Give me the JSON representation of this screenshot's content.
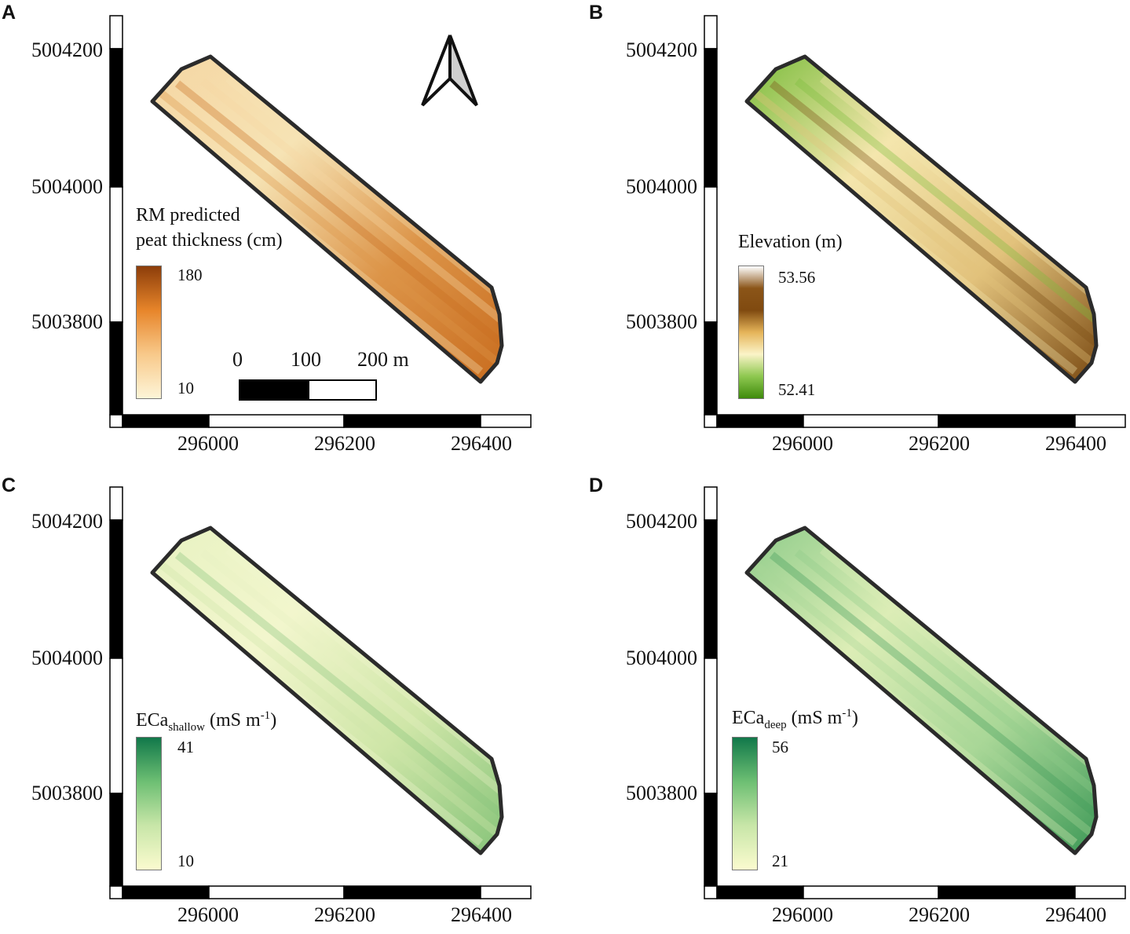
{
  "figure": {
    "y_ticks": [
      "5004200",
      "5004000",
      "5003800"
    ],
    "x_ticks": [
      "296000",
      "296200",
      "296400"
    ],
    "frame_stripes_y": [
      "#ffffff",
      "#000000",
      "#ffffff",
      "#000000"
    ],
    "frame_stripes_x": [
      "#ffffff",
      "#000000",
      "#ffffff",
      "#000000",
      "#ffffff"
    ],
    "outline_color": "#2b2b2b"
  },
  "panels": [
    {
      "label": "A",
      "legend_title_line1": "RM predicted",
      "legend_title_line2": "peat thickness (cm)",
      "legend_max": "180",
      "legend_min": "10",
      "ramp": [
        "#8c3d0a",
        "#e7852a",
        "#f8c98a",
        "#fdf5d8"
      ],
      "field_fill": [
        "#f5d6a3",
        "#f6e3b4",
        "#dc9448",
        "#c96d1f"
      ],
      "north_arrow": true,
      "scale_bar": {
        "labels": [
          "0",
          "100",
          "200 m"
        ]
      }
    },
    {
      "label": "B",
      "legend_title_line1": "Elevation (m)",
      "legend_title_line2": "",
      "legend_max": "53.56",
      "legend_min": "52.41",
      "ramp": [
        "#ffffff",
        "#8b5518",
        "#804a10",
        "#e5b459",
        "#fbf4c8",
        "#8ec850",
        "#3f8b0c"
      ],
      "field_fill": [
        "#7bbd3c",
        "#f4e6ad",
        "#e2c27c",
        "#7c4c14"
      ]
    },
    {
      "label": "C",
      "legend_title_html": "ECa<sub>shallow</sub> (mS m<sup>-1</sup>)",
      "legend_title_text": "ECashallow (mS m-1)",
      "legend_max": "41",
      "legend_min": "10",
      "ramp": [
        "#11784a",
        "#6dbf73",
        "#c8e6a8",
        "#fbfbcf"
      ],
      "field_fill": [
        "#e8f2c2",
        "#f2f6cd",
        "#cfe6a8",
        "#88c47a"
      ]
    },
    {
      "label": "D",
      "legend_title_html": "ECa<sub>deep</sub> (mS m<sup>-1</sup>)",
      "legend_title_text": "ECadeep (mS m-1)",
      "legend_max": "56",
      "legend_min": "21",
      "ramp": [
        "#11784a",
        "#6dbf73",
        "#c8e6a8",
        "#fbfbcf"
      ],
      "field_fill": [
        "#8fcc8a",
        "#dcedb6",
        "#a9d797",
        "#3f9a58"
      ]
    }
  ]
}
